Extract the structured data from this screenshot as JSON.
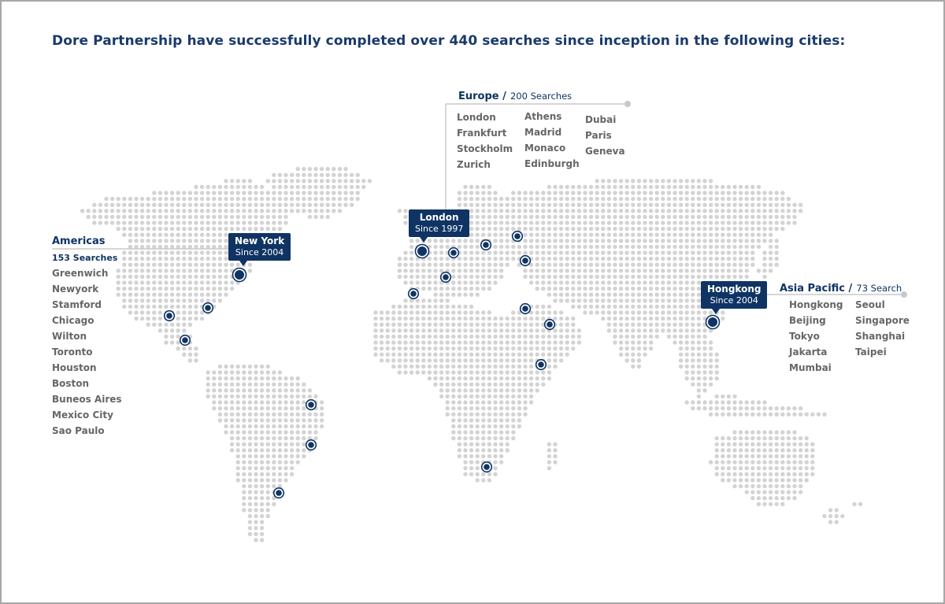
{
  "title": "Dore Partnership have successfully completed over 440 searches since inception in the following cities:",
  "colors": {
    "navy": "#0f3463",
    "dot": "#d3d3d3",
    "leader": "#c8c8c8",
    "city_text": "#666666"
  },
  "regions": {
    "americas": {
      "name": "Americas",
      "searches": "153 Searches",
      "cities": [
        "Greenwich",
        "Newyork",
        "Stamford",
        "Chicago",
        "Wilton",
        "Toronto",
        "Houston",
        "Boston",
        "Buneos Aires",
        "Mexico City",
        "Sao Paulo"
      ]
    },
    "europe": {
      "name": "Europe /",
      "searches": "200 Searches",
      "cities": [
        "London",
        "Frankfurt",
        "Stockholm",
        "Zurich",
        "Athens",
        "Madrid",
        "Monaco",
        "Edinburgh",
        "Dubai",
        "Paris",
        "Geneva"
      ]
    },
    "asia": {
      "name": "Asia Pacific /",
      "searches": "73 Search",
      "cities": [
        "Hongkong",
        "Beijing",
        "Tokyo",
        "Jakarta",
        "Mumbai",
        "Seoul",
        "Singapore",
        "Shanghai",
        "Taipei"
      ]
    }
  },
  "callouts": {
    "newyork": {
      "name": "New York",
      "since": "Since 2004"
    },
    "london": {
      "name": "London",
      "since": "Since 1997"
    },
    "hongkong": {
      "name": "Hongkong",
      "since": "Since 2004"
    }
  }
}
